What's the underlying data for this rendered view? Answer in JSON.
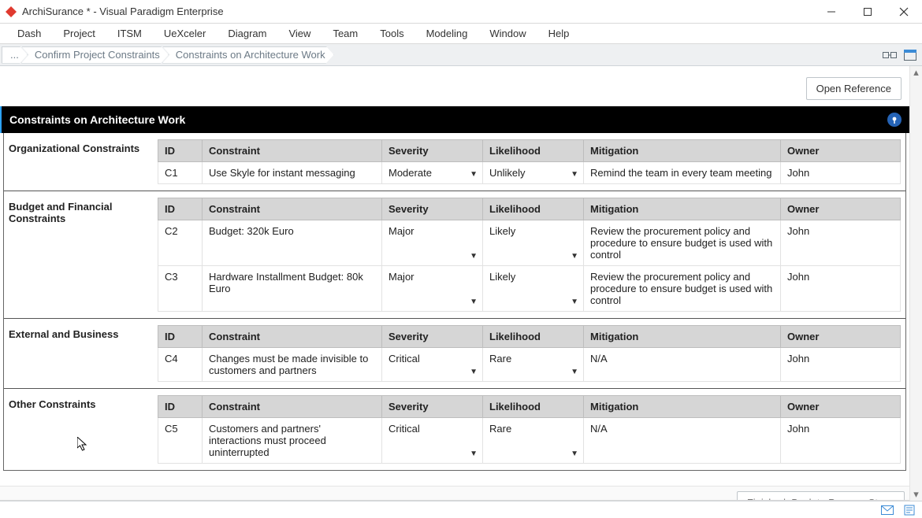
{
  "title": "ArchiSurance * - Visual Paradigm Enterprise",
  "menu": [
    "Dash",
    "Project",
    "ITSM",
    "UeXceler",
    "Diagram",
    "View",
    "Team",
    "Tools",
    "Modeling",
    "Window",
    "Help"
  ],
  "breadcrumb": [
    "...",
    "Confirm Project Constraints",
    "Constraints on Architecture Work"
  ],
  "open_reference_label": "Open Reference",
  "page_heading": "Constraints on Architecture Work",
  "columns": {
    "id": "ID",
    "constraint": "Constraint",
    "severity": "Severity",
    "likelihood": "Likelihood",
    "mitigation": "Mitigation",
    "owner": "Owner"
  },
  "sections": [
    {
      "label": "Organizational Constraints",
      "rows": [
        {
          "id": "C1",
          "constraint": "Use Skyle for instant messaging",
          "severity": "Moderate",
          "likelihood": "Unlikely",
          "mitigation": "Remind the team in every team meeting",
          "owner": "John"
        }
      ]
    },
    {
      "label": "Budget and Financial Constraints",
      "rows": [
        {
          "id": "C2",
          "constraint": "Budget: 320k Euro",
          "severity": "Major",
          "likelihood": "Likely",
          "mitigation": "Review the procurement policy and procedure to ensure budget is used with control",
          "owner": "John"
        },
        {
          "id": "C3",
          "constraint": "Hardware Installment Budget: 80k Euro",
          "severity": "Major",
          "likelihood": "Likely",
          "mitigation": "Review the procurement policy and procedure to ensure budget is used with control",
          "owner": "John"
        }
      ]
    },
    {
      "label": "External and Business",
      "rows": [
        {
          "id": "C4",
          "constraint": "Changes must be made invisible to customers and partners",
          "severity": "Critical",
          "likelihood": "Rare",
          "mitigation": "N/A",
          "owner": "John"
        }
      ]
    },
    {
      "label": "Other Constraints",
      "rows": [
        {
          "id": "C5",
          "constraint": "Customers and partners' interactions must proceed uninterrupted",
          "severity": "Critical",
          "likelihood": "Rare",
          "mitigation": "N/A",
          "owner": "John"
        }
      ]
    }
  ],
  "footer_button": "Finished. Back to Process Steps",
  "colors": {
    "header_bg": "#000000",
    "header_fg": "#ffffff",
    "th_bg": "#d6d6d6",
    "accent": "#2563b5"
  }
}
